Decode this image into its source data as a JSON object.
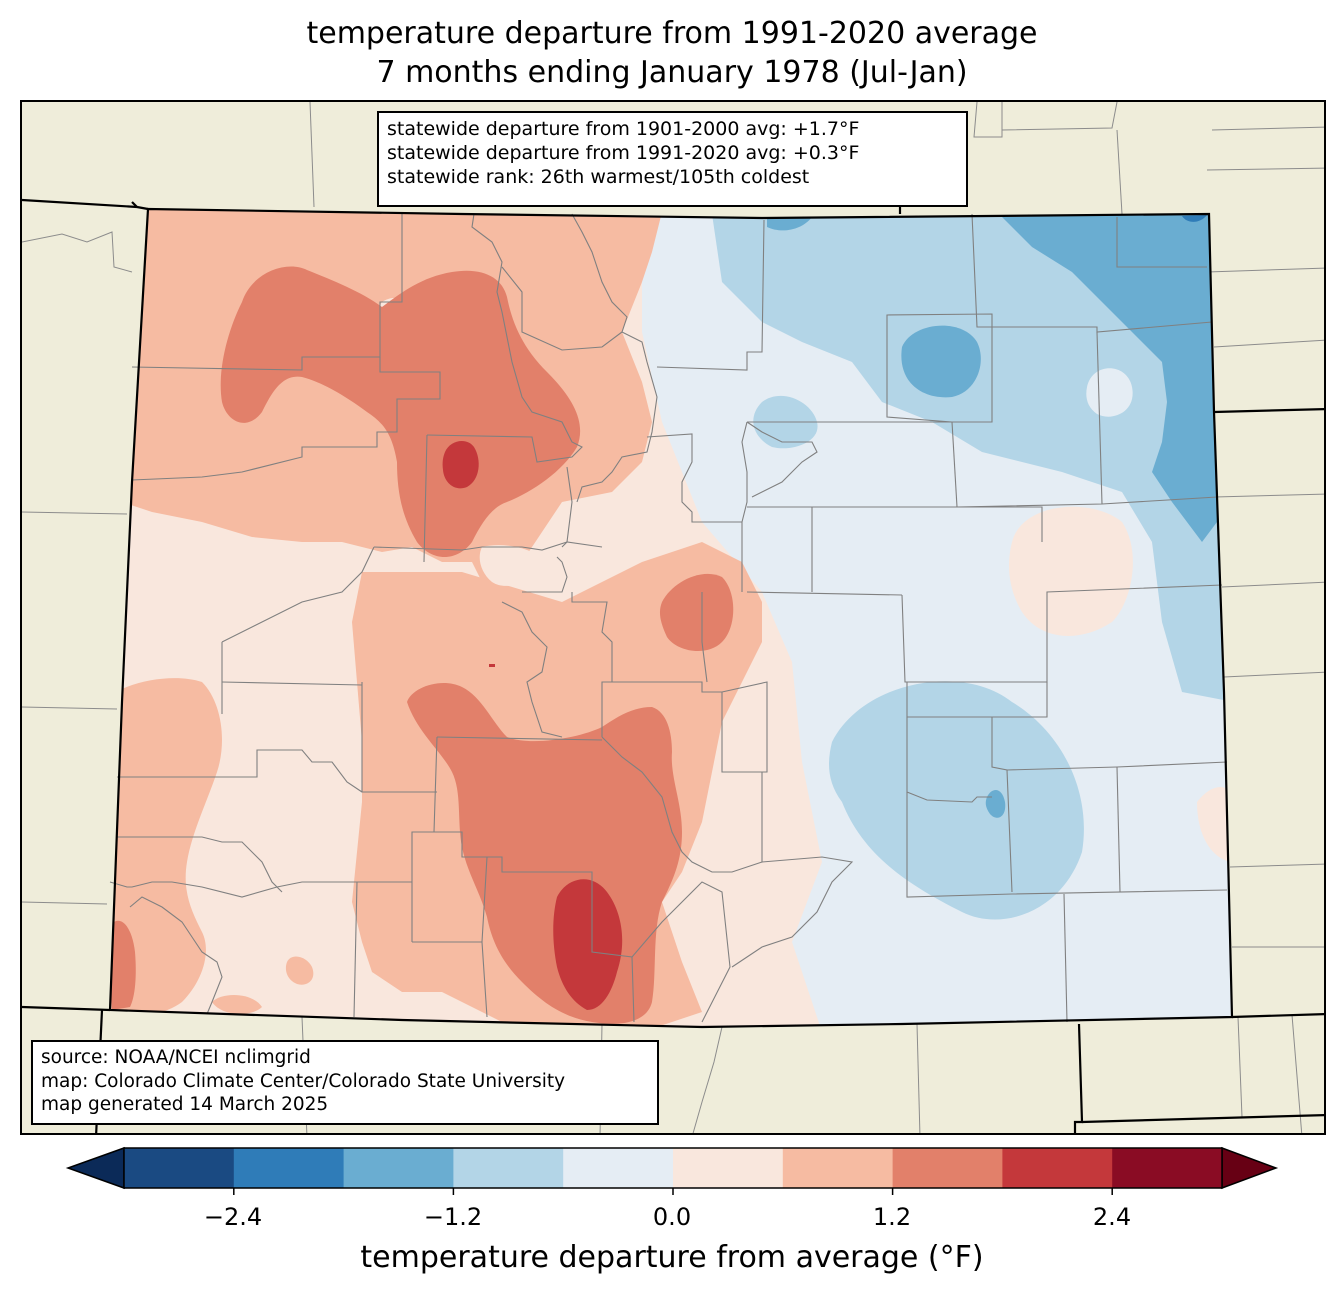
{
  "title": {
    "line1": "temperature departure from 1991-2020 average",
    "line2": "7 months ending January 1978 (Jul-Jan)"
  },
  "stats_box": {
    "line1": "statewide departure from 1901-2000 avg: +1.7°F",
    "line2": "statewide departure from 1991-2020 avg: +0.3°F",
    "line3": "statewide rank: 26th warmest/105th coldest"
  },
  "source_box": {
    "line1": "source: NOAA/NCEI nclimgrid",
    "line2": "map: Colorado Climate Center/Colorado State University",
    "line3": "map generated 14 March 2025"
  },
  "colorbar": {
    "label": "temperature departure from average (°F)",
    "ticks": [
      "−2.4",
      "−1.2",
      "0.0",
      "1.2",
      "2.4"
    ],
    "levels": [
      -3.0,
      -2.4,
      -1.8,
      -1.2,
      -0.6,
      0.0,
      0.6,
      1.2,
      1.8,
      2.4,
      3.0
    ],
    "colors": [
      "#1a4a82",
      "#2f7cb8",
      "#6aadd1",
      "#b3d5e7",
      "#e5edf4",
      "#f9e7dd",
      "#f6bba2",
      "#e2806a",
      "#c4383b",
      "#8a0c24"
    ],
    "under_color": "#0b2a58",
    "over_color": "#670014"
  },
  "map": {
    "land_color": "#efedda",
    "state_border_color": "#000000",
    "county_line_color": "#808080"
  }
}
